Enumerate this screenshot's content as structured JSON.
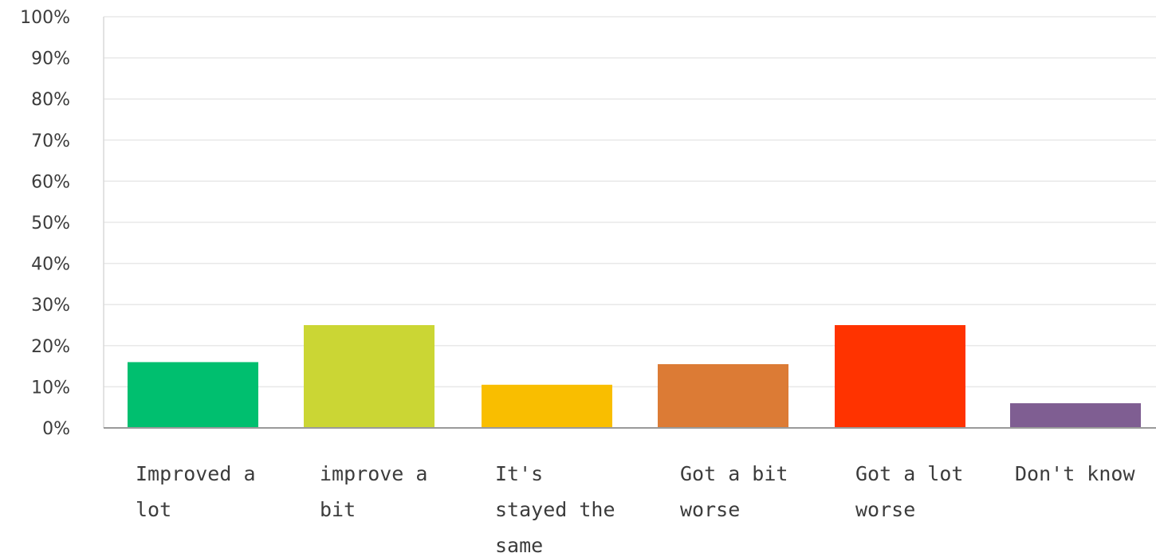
{
  "chart_data": {
    "type": "bar",
    "categories": [
      [
        "Improved a",
        "lot"
      ],
      [
        "improve a",
        "bit"
      ],
      [
        "It's",
        "stayed the",
        "same"
      ],
      [
        "Got a bit",
        "worse"
      ],
      [
        "Got a lot",
        "worse"
      ],
      [
        "Don't know"
      ]
    ],
    "values": [
      16,
      25,
      10.5,
      15.5,
      25,
      6
    ],
    "colors": [
      "#00bf6f",
      "#cbd634",
      "#f9be00",
      "#dc7b35",
      "#ff3300",
      "#7f5e92"
    ],
    "y_ticks": [
      "0%",
      "10%",
      "20%",
      "30%",
      "40%",
      "50%",
      "60%",
      "70%",
      "80%",
      "90%",
      "100%"
    ],
    "ylim": [
      0,
      100
    ],
    "y_unit": "%",
    "grid": true,
    "title": "",
    "xlabel": "",
    "ylabel": ""
  }
}
